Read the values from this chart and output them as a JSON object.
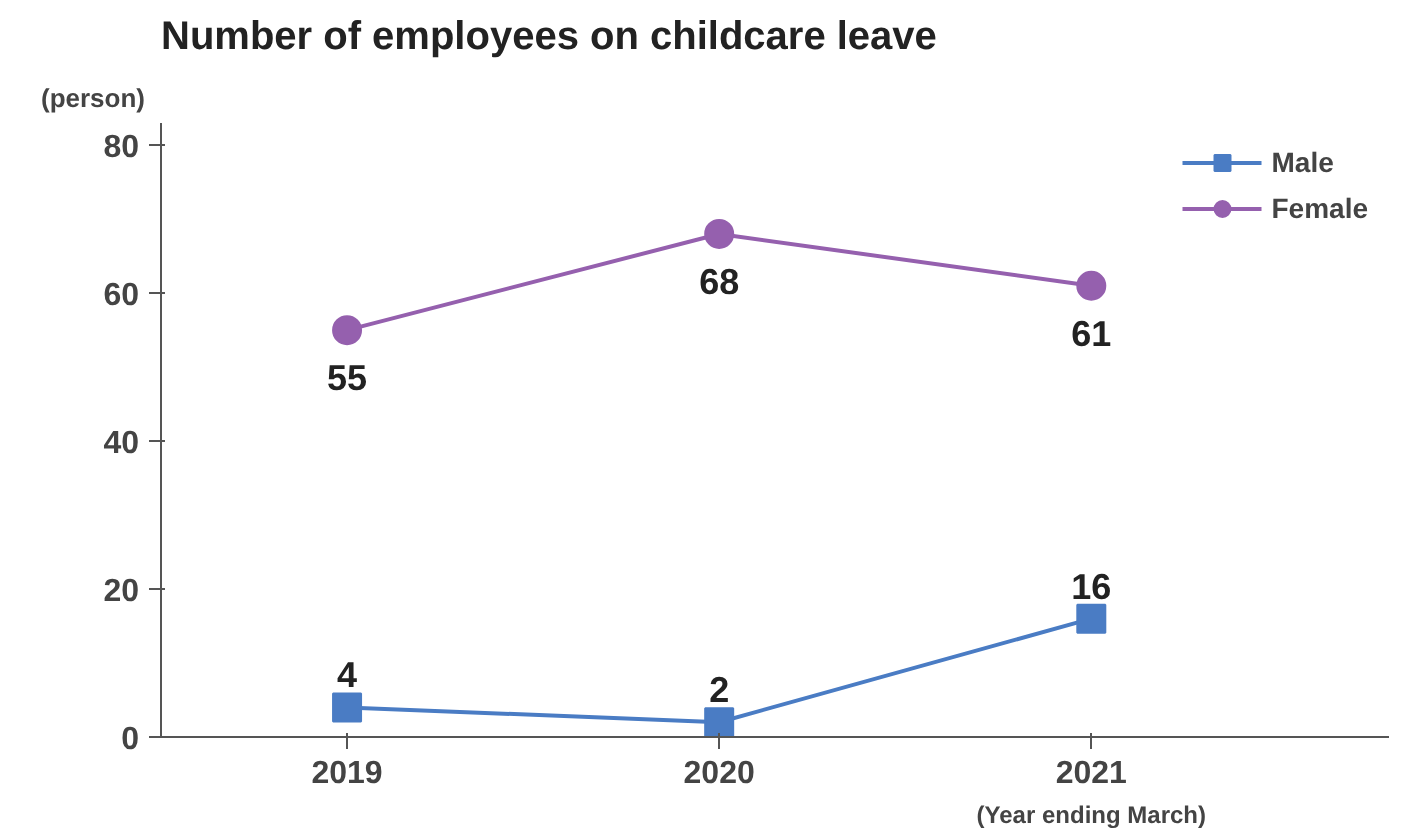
{
  "chart_data": {
    "type": "line",
    "title": "Number of employees on childcare leave",
    "ylabel": "(person)",
    "annotations": [
      "(Year ending March)"
    ],
    "categories": [
      "2019",
      "2020",
      "2021"
    ],
    "series": [
      {
        "name": "Male",
        "color": "#4a7cc4",
        "values": [
          4,
          2,
          16
        ],
        "marker": "square"
      },
      {
        "name": "Female",
        "color": "#9560ae",
        "values": [
          55,
          68,
          61
        ],
        "marker": "circle"
      }
    ],
    "ylim": [
      0,
      83
    ],
    "yticks": [
      0,
      20,
      40,
      60,
      80
    ],
    "grid": false,
    "legend": "top right",
    "data_labels": true,
    "line_style": "solid"
  }
}
